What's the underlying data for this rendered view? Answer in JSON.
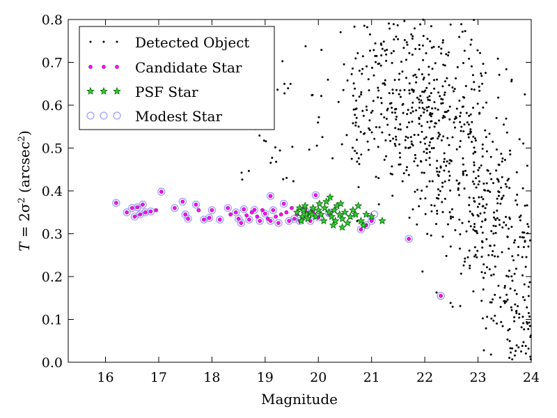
{
  "chart_data": {
    "type": "scatter",
    "xlabel": "Magnitude",
    "ylabel_main": "T",
    "ylabel_eq": " = 2σ",
    "ylabel_exp": "2",
    "ylabel_unit_open": " (arcsec",
    "ylabel_unit_exp": "2",
    "ylabel_unit_close": ")",
    "xlim": [
      15.3,
      24.0
    ],
    "ylim": [
      0.0,
      0.8
    ],
    "xticks": [
      "16",
      "17",
      "18",
      "19",
      "20",
      "21",
      "22",
      "23",
      "24"
    ],
    "yticks": [
      "0.0",
      "0.1",
      "0.2",
      "0.3",
      "0.4",
      "0.5",
      "0.6",
      "0.7",
      "0.8"
    ],
    "legend_position": "top-left",
    "grid": false,
    "colors": {
      "detected": "#000000",
      "candidate_fill": "#ff00ff",
      "candidate_edge": "#8a2a8a",
      "psf_fill": "#33cc33",
      "psf_edge": "#006400",
      "modest_edge": "#9f9fff"
    },
    "series": [
      {
        "name": "Detected Object",
        "marker": "dot",
        "generated": true,
        "note_count": 900,
        "x_range": [
          17.0,
          24.0
        ],
        "y_range": [
          0.0,
          0.8
        ]
      },
      {
        "name": "Candidate Star",
        "marker": "small-circle",
        "points": [
          [
            16.2,
            0.372
          ],
          [
            16.4,
            0.35
          ],
          [
            16.5,
            0.36
          ],
          [
            16.55,
            0.34
          ],
          [
            16.6,
            0.362
          ],
          [
            16.65,
            0.345
          ],
          [
            16.7,
            0.368
          ],
          [
            16.75,
            0.35
          ],
          [
            16.85,
            0.352
          ],
          [
            16.95,
            0.355
          ],
          [
            17.05,
            0.398
          ],
          [
            17.3,
            0.36
          ],
          [
            17.45,
            0.375
          ],
          [
            17.5,
            0.345
          ],
          [
            17.55,
            0.335
          ],
          [
            17.7,
            0.368
          ],
          [
            17.75,
            0.355
          ],
          [
            17.85,
            0.333
          ],
          [
            17.95,
            0.337
          ],
          [
            18.0,
            0.355
          ],
          [
            18.15,
            0.333
          ],
          [
            18.3,
            0.36
          ],
          [
            18.35,
            0.345
          ],
          [
            18.45,
            0.35
          ],
          [
            18.5,
            0.335
          ],
          [
            18.55,
            0.325
          ],
          [
            18.6,
            0.357
          ],
          [
            18.65,
            0.343
          ],
          [
            18.7,
            0.333
          ],
          [
            18.75,
            0.35
          ],
          [
            18.8,
            0.356
          ],
          [
            18.85,
            0.34
          ],
          [
            18.9,
            0.33
          ],
          [
            18.95,
            0.355
          ],
          [
            19.0,
            0.347
          ],
          [
            19.05,
            0.335
          ],
          [
            19.1,
            0.33
          ],
          [
            19.15,
            0.355
          ],
          [
            19.2,
            0.34
          ],
          [
            19.25,
            0.325
          ],
          [
            19.3,
            0.345
          ],
          [
            19.35,
            0.37
          ],
          [
            19.4,
            0.35
          ],
          [
            19.45,
            0.33
          ],
          [
            19.5,
            0.36
          ],
          [
            19.55,
            0.335
          ],
          [
            19.6,
            0.345
          ],
          [
            19.65,
            0.33
          ],
          [
            19.7,
            0.34
          ],
          [
            19.75,
            0.355
          ],
          [
            19.8,
            0.345
          ],
          [
            19.85,
            0.33
          ],
          [
            19.9,
            0.35
          ],
          [
            20.0,
            0.338
          ],
          [
            20.2,
            0.348
          ],
          [
            20.8,
            0.31
          ],
          [
            20.9,
            0.32
          ],
          [
            21.0,
            0.33
          ],
          [
            21.7,
            0.288
          ],
          [
            22.3,
            0.155
          ],
          [
            19.95,
            0.39
          ],
          [
            19.1,
            0.388
          ]
        ]
      },
      {
        "name": "PSF Star",
        "marker": "star",
        "points": [
          [
            19.6,
            0.35
          ],
          [
            19.65,
            0.36
          ],
          [
            19.7,
            0.34
          ],
          [
            19.72,
            0.355
          ],
          [
            19.75,
            0.365
          ],
          [
            19.78,
            0.345
          ],
          [
            19.8,
            0.335
          ],
          [
            19.85,
            0.35
          ],
          [
            19.9,
            0.36
          ],
          [
            19.95,
            0.34
          ],
          [
            20.0,
            0.355
          ],
          [
            20.02,
            0.37
          ],
          [
            20.05,
            0.345
          ],
          [
            20.1,
            0.33
          ],
          [
            20.12,
            0.36
          ],
          [
            20.15,
            0.375
          ],
          [
            20.2,
            0.35
          ],
          [
            20.22,
            0.385
          ],
          [
            20.25,
            0.34
          ],
          [
            20.3,
            0.355
          ],
          [
            20.32,
            0.33
          ],
          [
            20.35,
            0.365
          ],
          [
            20.4,
            0.345
          ],
          [
            20.42,
            0.37
          ],
          [
            20.45,
            0.335
          ],
          [
            20.5,
            0.35
          ],
          [
            20.55,
            0.325
          ],
          [
            20.6,
            0.34
          ],
          [
            20.65,
            0.355
          ],
          [
            20.7,
            0.345
          ],
          [
            20.75,
            0.365
          ],
          [
            20.8,
            0.33
          ],
          [
            20.85,
            0.32
          ],
          [
            20.9,
            0.345
          ],
          [
            21.0,
            0.34
          ],
          [
            21.2,
            0.33
          ],
          [
            19.68,
            0.33
          ],
          [
            19.88,
            0.345
          ],
          [
            20.28,
            0.32
          ],
          [
            20.45,
            0.315
          ]
        ]
      },
      {
        "name": "Modest Star",
        "marker": "hollow-circle",
        "points": [
          [
            16.2,
            0.372
          ],
          [
            16.4,
            0.35
          ],
          [
            16.5,
            0.36
          ],
          [
            16.55,
            0.34
          ],
          [
            16.6,
            0.362
          ],
          [
            16.65,
            0.345
          ],
          [
            16.7,
            0.368
          ],
          [
            16.75,
            0.35
          ],
          [
            16.85,
            0.352
          ],
          [
            17.05,
            0.398
          ],
          [
            17.3,
            0.36
          ],
          [
            17.45,
            0.375
          ],
          [
            17.5,
            0.345
          ],
          [
            17.55,
            0.335
          ],
          [
            17.7,
            0.368
          ],
          [
            17.85,
            0.333
          ],
          [
            17.95,
            0.337
          ],
          [
            18.0,
            0.355
          ],
          [
            18.15,
            0.333
          ],
          [
            18.3,
            0.36
          ],
          [
            18.45,
            0.35
          ],
          [
            18.5,
            0.335
          ],
          [
            18.55,
            0.325
          ],
          [
            18.6,
            0.357
          ],
          [
            18.7,
            0.333
          ],
          [
            18.8,
            0.356
          ],
          [
            18.9,
            0.33
          ],
          [
            19.0,
            0.347
          ],
          [
            19.1,
            0.33
          ],
          [
            19.15,
            0.355
          ],
          [
            19.25,
            0.325
          ],
          [
            19.35,
            0.37
          ],
          [
            19.45,
            0.33
          ],
          [
            19.55,
            0.335
          ],
          [
            19.65,
            0.33
          ],
          [
            19.75,
            0.355
          ],
          [
            19.85,
            0.33
          ],
          [
            19.95,
            0.39
          ],
          [
            20.0,
            0.338
          ],
          [
            20.2,
            0.348
          ],
          [
            20.8,
            0.31
          ],
          [
            20.9,
            0.32
          ],
          [
            21.0,
            0.33
          ],
          [
            21.05,
            0.345
          ],
          [
            21.7,
            0.288
          ],
          [
            22.3,
            0.155
          ],
          [
            19.1,
            0.388
          ]
        ]
      }
    ]
  }
}
